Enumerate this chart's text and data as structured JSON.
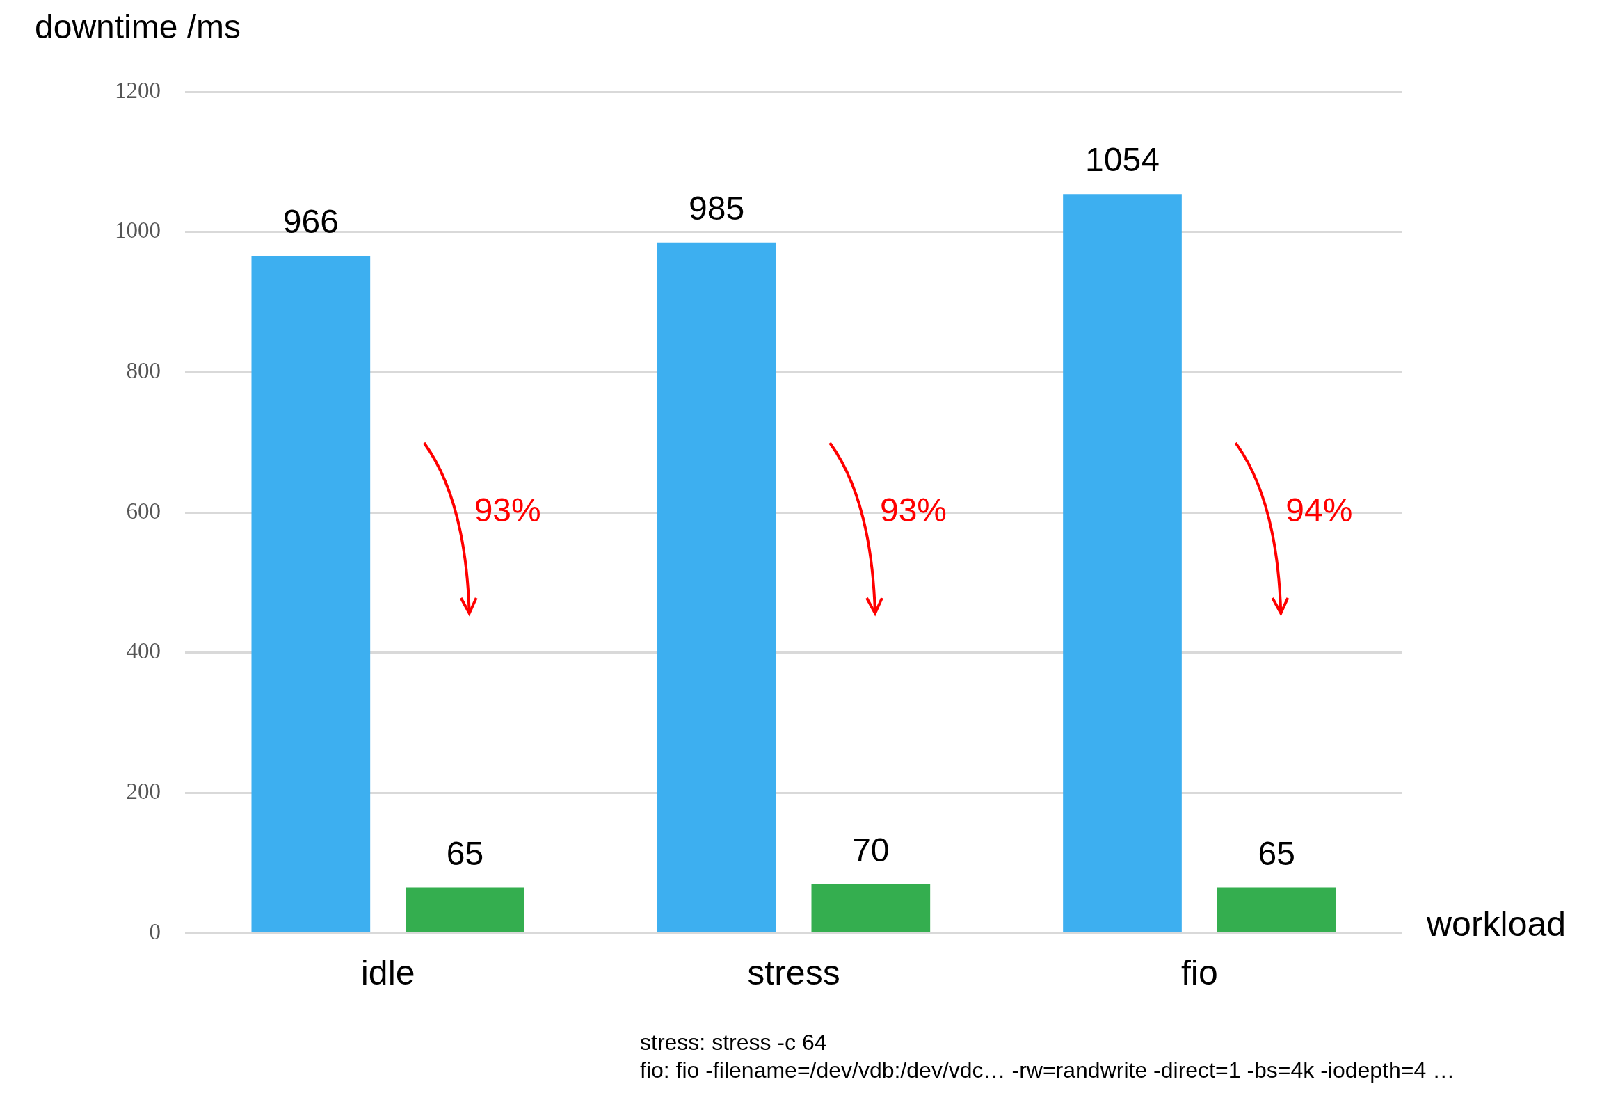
{
  "chart_data": {
    "type": "bar",
    "ylabel": "downtime /ms",
    "xlabel": "workload",
    "categories": [
      "idle",
      "stress",
      "fio"
    ],
    "series": [
      {
        "color": "#3daff0",
        "values": [
          966,
          985,
          1054
        ]
      },
      {
        "color": "#34ae4f",
        "values": [
          65,
          70,
          65
        ]
      }
    ],
    "ylim": [
      0,
      1200
    ],
    "yticks": [
      0,
      200,
      400,
      600,
      800,
      1000,
      1200
    ],
    "grid": "y",
    "legend": false,
    "data_labels": true,
    "annotations": [
      "93%",
      "93%",
      "94%",
      "stress: stress -c 64",
      "fio: fio -filename=/dev/vdb:/dev/vdc… -rw=randwrite -direct=1 -bs=4k -iodepth=4 …"
    ]
  }
}
